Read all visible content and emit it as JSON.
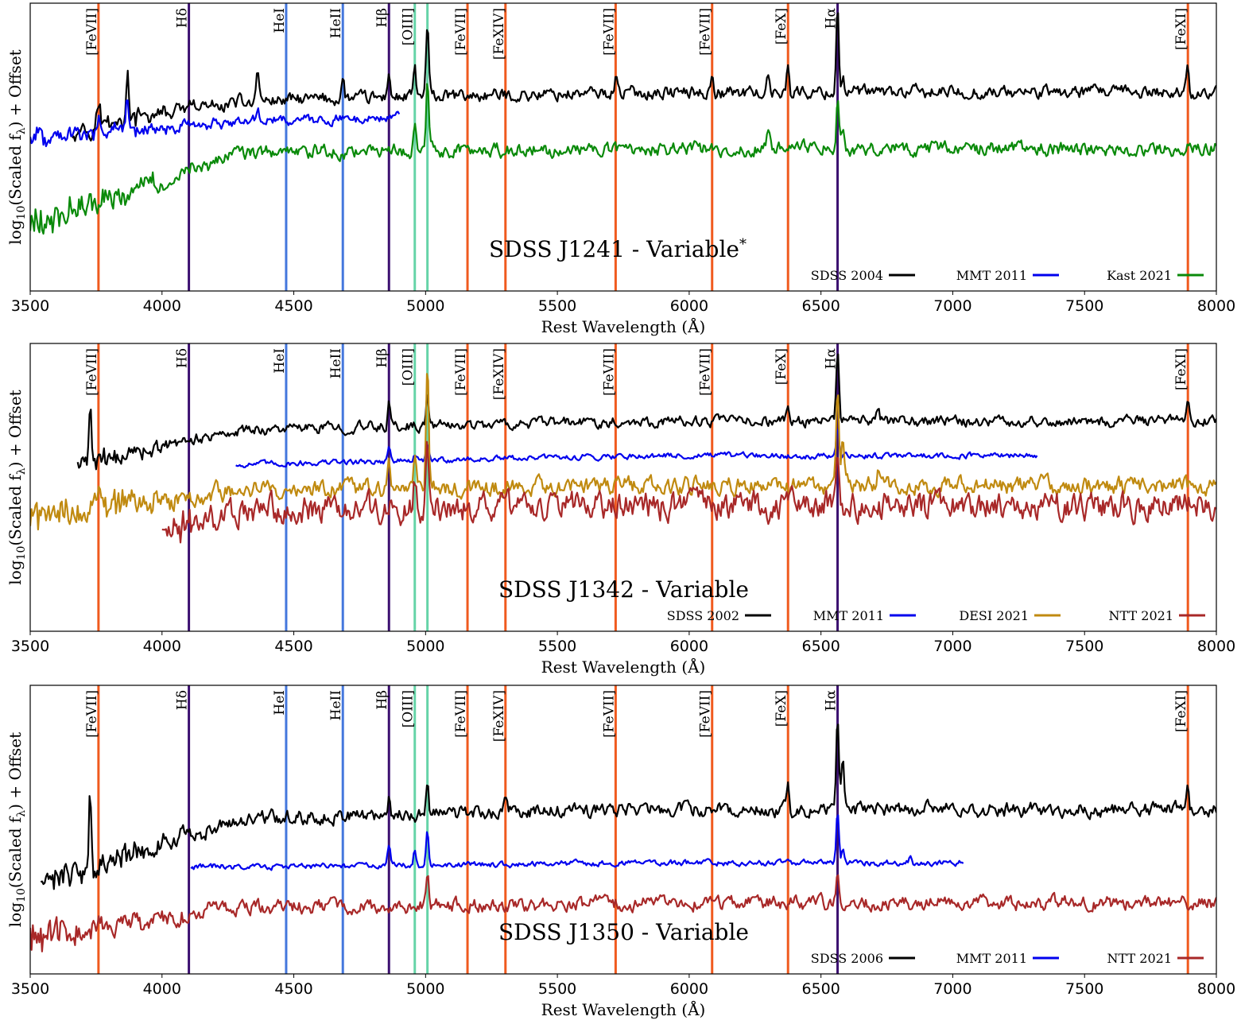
{
  "figure": {
    "xlabel": "Rest Wavelength (Å)",
    "ylabel_prefix": "log",
    "ylabel_sub": "10",
    "ylabel_mid": "(Scaled f",
    "ylabel_lambda": "λ",
    "ylabel_suffix": ") + Offset",
    "xlim": [
      3500,
      8000
    ],
    "xticks": [
      "3500",
      "4000",
      "4500",
      "5000",
      "5500",
      "6000",
      "6500",
      "7000",
      "7500",
      "8000"
    ]
  },
  "line_markers": [
    {
      "name": "[FeVII]",
      "wavelength": 3759,
      "color": "#f05a1e"
    },
    {
      "name": "Hδ",
      "wavelength": 4102,
      "color": "#3b0f70"
    },
    {
      "name": "HeI",
      "wavelength": 4471,
      "color": "#4477dd"
    },
    {
      "name": "HeII",
      "wavelength": 4686,
      "color": "#4477dd"
    },
    {
      "name": "Hβ",
      "wavelength": 4861,
      "color": "#3b0f70"
    },
    {
      "name": "[OIII]",
      "wavelength": 4959,
      "color": "#66d4a8"
    },
    {
      "name": "",
      "wavelength": 5007,
      "color": "#66d4a8"
    },
    {
      "name": "[FeVII]",
      "wavelength": 5159,
      "color": "#f05a1e"
    },
    {
      "name": "[FeXIV]",
      "wavelength": 5303,
      "color": "#f05a1e"
    },
    {
      "name": "[FeVII]",
      "wavelength": 5721,
      "color": "#f05a1e"
    },
    {
      "name": "[FeVII]",
      "wavelength": 6087,
      "color": "#f05a1e"
    },
    {
      "name": "[FeX]",
      "wavelength": 6375,
      "color": "#f05a1e"
    },
    {
      "name": "Hα",
      "wavelength": 6563,
      "color": "#3b0f70"
    },
    {
      "name": "[FeXI]",
      "wavelength": 7892,
      "color": "#f05a1e"
    }
  ],
  "chart_data": [
    {
      "type": "line",
      "title": "SDSS J1241 - Variable",
      "title_sup": "*",
      "xlabel": "Rest Wavelength (Å)",
      "ylabel": "log10(Scaled fλ) + Offset",
      "xlim": [
        3500,
        8000
      ],
      "ylim": [
        0,
        1
      ],
      "series": [
        {
          "name": "SDSS 2004",
          "color": "#000000",
          "x_range": [
            3660,
            8000
          ],
          "level": 0.66,
          "noise": 0.018,
          "blue_drop": 0.12,
          "lines": [
            [
              3760,
              0.08
            ],
            [
              3869,
              0.14
            ],
            [
              4363,
              0.12
            ],
            [
              4686,
              0.07
            ],
            [
              4861,
              0.1
            ],
            [
              4959,
              0.1
            ],
            [
              5007,
              0.25
            ],
            [
              5721,
              0.06
            ],
            [
              6087,
              0.07
            ],
            [
              6300,
              0.05
            ],
            [
              6375,
              0.11
            ],
            [
              6563,
              0.3
            ],
            [
              6583,
              0.06
            ],
            [
              7892,
              0.1
            ]
          ]
        },
        {
          "name": "MMT 2011",
          "color": "#0000ee",
          "x_range": [
            3500,
            4900
          ],
          "level": 0.59,
          "noise": 0.015,
          "blue_drop": 0.06,
          "lines": [
            [
              3760,
              0.05
            ],
            [
              3869,
              0.12
            ],
            [
              4363,
              0.05
            ]
          ]
        },
        {
          "name": "Kast 2021",
          "color": "#0a8a0a",
          "x_range": [
            3500,
            8000
          ],
          "level": 0.48,
          "noise": 0.02,
          "blue_drop": 0.25,
          "lines": [
            [
              4959,
              0.09
            ],
            [
              5007,
              0.25
            ],
            [
              6300,
              0.05
            ],
            [
              6563,
              0.18
            ],
            [
              6583,
              0.05
            ]
          ]
        }
      ]
    },
    {
      "type": "line",
      "title": "SDSS J1342 - Variable",
      "title_sup": "",
      "xlabel": "Rest Wavelength (Å)",
      "ylabel": "log10(Scaled fλ) + Offset",
      "xlim": [
        3500,
        8000
      ],
      "ylim": [
        0,
        1
      ],
      "series": [
        {
          "name": "SDSS 2002",
          "color": "#000000",
          "x_range": [
            3680,
            8000
          ],
          "level": 0.7,
          "noise": 0.015,
          "blue_drop": 0.16,
          "lines": [
            [
              3727,
              0.2
            ],
            [
              4861,
              0.08
            ],
            [
              5007,
              0.1
            ],
            [
              6375,
              0.05
            ],
            [
              6563,
              0.25
            ],
            [
              6716,
              0.04
            ],
            [
              7892,
              0.07
            ]
          ]
        },
        {
          "name": "MMT 2011",
          "color": "#0000ee",
          "x_range": [
            4280,
            7320
          ],
          "level": 0.58,
          "noise": 0.008,
          "blue_drop": 0.0,
          "lines": [
            [
              4861,
              0.05
            ],
            [
              4959,
              0.02
            ],
            [
              5007,
              0.05
            ],
            [
              6563,
              0.1
            ]
          ]
        },
        {
          "name": "DESI 2021",
          "color": "#c08a10",
          "x_range": [
            3500,
            8000
          ],
          "level": 0.49,
          "noise": 0.025,
          "blue_drop": 0.08,
          "lines": [
            [
              4861,
              0.07
            ],
            [
              4959,
              0.12
            ],
            [
              5007,
              0.45
            ],
            [
              6563,
              0.32
            ],
            [
              6583,
              0.15
            ],
            [
              6716,
              0.05
            ]
          ]
        },
        {
          "name": "NTT 2021",
          "color": "#a82828",
          "x_range": [
            4000,
            8000
          ],
          "level": 0.42,
          "noise": 0.04,
          "blue_drop": 0.18,
          "lines": [
            [
              4959,
              0.12
            ],
            [
              5007,
              0.25
            ],
            [
              6563,
              0.15
            ]
          ]
        }
      ]
    },
    {
      "type": "line",
      "title": "SDSS J1350 - Variable",
      "title_sup": "",
      "xlabel": "Rest Wavelength (Å)",
      "ylabel": "log10(Scaled fλ) + Offset",
      "xlim": [
        3500,
        8000
      ],
      "ylim": [
        0,
        1
      ],
      "series": [
        {
          "name": "SDSS 2006",
          "color": "#000000",
          "x_range": [
            3540,
            8000
          ],
          "level": 0.54,
          "noise": 0.02,
          "blue_drop": 0.24,
          "lines": [
            [
              3727,
              0.25
            ],
            [
              4861,
              0.07
            ],
            [
              5007,
              0.12
            ],
            [
              5303,
              0.03
            ],
            [
              6375,
              0.09
            ],
            [
              6563,
              0.33
            ],
            [
              6583,
              0.2
            ],
            [
              6716,
              0.05
            ],
            [
              7892,
              0.09
            ]
          ]
        },
        {
          "name": "MMT 2011",
          "color": "#0000ee",
          "x_range": [
            4110,
            7040
          ],
          "level": 0.37,
          "noise": 0.008,
          "blue_drop": 0.0,
          "lines": [
            [
              4861,
              0.07
            ],
            [
              4959,
              0.06
            ],
            [
              5007,
              0.12
            ],
            [
              6563,
              0.19
            ],
            [
              6583,
              0.05
            ],
            [
              6840,
              0.03
            ]
          ]
        },
        {
          "name": "NTT 2021",
          "color": "#a82828",
          "x_range": [
            3500,
            8000
          ],
          "level": 0.23,
          "noise": 0.02,
          "blue_drop": 0.1,
          "lines": [
            [
              5007,
              0.1
            ],
            [
              6563,
              0.09
            ]
          ]
        }
      ]
    }
  ]
}
